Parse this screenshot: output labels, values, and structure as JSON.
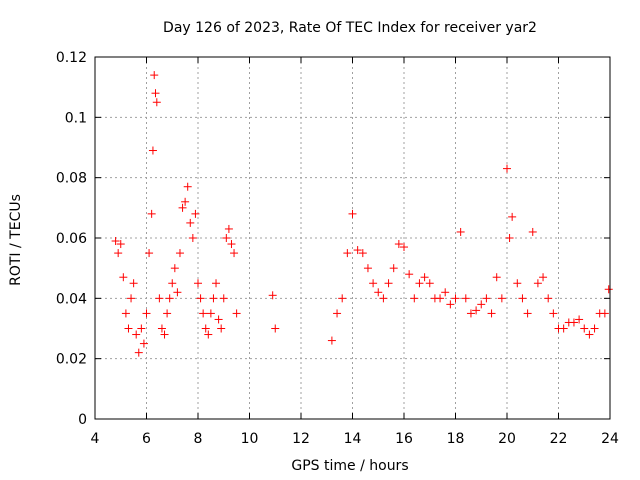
{
  "chart_data": {
    "type": "scatter",
    "title": "Day 126 of 2023, Rate Of TEC Index for receiver yar2",
    "xlabel": "GPS time / hours",
    "ylabel": "ROTI / TECUs",
    "xlim": [
      4,
      24
    ],
    "ylim": [
      0,
      0.12
    ],
    "x_ticks": [
      "4",
      "6",
      "8",
      "10",
      "12",
      "14",
      "16",
      "18",
      "20",
      "22",
      "24"
    ],
    "y_ticks": [
      "0",
      "0.02",
      "0.04",
      "0.06",
      "0.08",
      "0.1",
      "0.12"
    ],
    "grid": true,
    "marker": "+",
    "color": "#ff0000",
    "series": [
      {
        "x": [
          4.8,
          4.9,
          5.0,
          5.1,
          5.2,
          5.3,
          5.4,
          5.5,
          5.6,
          5.7,
          5.8,
          5.9,
          6.0,
          6.1,
          6.2,
          6.25,
          6.3,
          6.35,
          6.4,
          6.5,
          6.6,
          6.7,
          6.8,
          6.9,
          7.0,
          7.1,
          7.2,
          7.3,
          7.4,
          7.5,
          7.6,
          7.7,
          7.8,
          7.9,
          8.0,
          8.1,
          8.2,
          8.3,
          8.4,
          8.5,
          8.6,
          8.7,
          8.8,
          8.9,
          9.0,
          9.1,
          9.2,
          9.3,
          9.4,
          9.5,
          10.9,
          11.0,
          13.2,
          13.4,
          13.6,
          13.8,
          14.0,
          14.2,
          14.4,
          14.6,
          14.8,
          15.0,
          15.2,
          15.4,
          15.6,
          15.8,
          16.0,
          16.2,
          16.4,
          16.6,
          16.8,
          17.0,
          17.2,
          17.4,
          17.6,
          17.8,
          18.0,
          18.2,
          18.4,
          18.6,
          18.8,
          19.0,
          19.2,
          19.4,
          19.6,
          19.8,
          20.0,
          20.1,
          20.2,
          20.4,
          20.6,
          20.8,
          21.0,
          21.2,
          21.4,
          21.6,
          21.8,
          22.0,
          22.2,
          22.4,
          22.6,
          22.8,
          23.0,
          23.2,
          23.4,
          23.6,
          23.8,
          23.95
        ],
        "y": [
          0.059,
          0.055,
          0.058,
          0.047,
          0.035,
          0.03,
          0.04,
          0.045,
          0.028,
          0.022,
          0.03,
          0.025,
          0.035,
          0.055,
          0.068,
          0.089,
          0.114,
          0.108,
          0.105,
          0.04,
          0.03,
          0.028,
          0.035,
          0.04,
          0.045,
          0.05,
          0.042,
          0.055,
          0.07,
          0.072,
          0.077,
          0.065,
          0.06,
          0.068,
          0.045,
          0.04,
          0.035,
          0.03,
          0.028,
          0.035,
          0.04,
          0.045,
          0.033,
          0.03,
          0.04,
          0.06,
          0.063,
          0.058,
          0.055,
          0.035,
          0.041,
          0.03,
          0.026,
          0.035,
          0.04,
          0.055,
          0.068,
          0.056,
          0.055,
          0.05,
          0.045,
          0.042,
          0.04,
          0.045,
          0.05,
          0.058,
          0.057,
          0.048,
          0.04,
          0.045,
          0.047,
          0.045,
          0.04,
          0.04,
          0.042,
          0.038,
          0.04,
          0.062,
          0.04,
          0.035,
          0.036,
          0.038,
          0.04,
          0.035,
          0.047,
          0.04,
          0.083,
          0.06,
          0.067,
          0.045,
          0.04,
          0.035,
          0.062,
          0.045,
          0.047,
          0.04,
          0.035,
          0.03,
          0.03,
          0.032,
          0.032,
          0.033,
          0.03,
          0.028,
          0.03,
          0.035,
          0.035,
          0.043
        ]
      }
    ]
  }
}
